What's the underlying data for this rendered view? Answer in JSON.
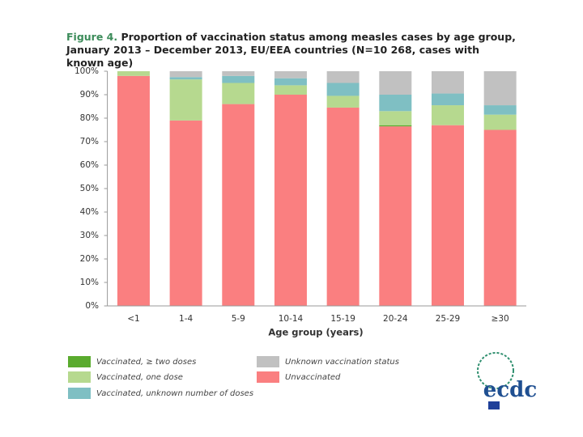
{
  "chart_data": {
    "type": "stacked_bar",
    "figure_label": "Figure 4.",
    "title": "Proportion of vaccination status among measles cases by age group, January 2013 – December 2013, EU/EEA countries (N=10 268, cases with known age)",
    "x_label": "Age group (years)",
    "categories": [
      "<1",
      "1-4",
      "5-9",
      "10-14",
      "15-19",
      "20-24",
      "25-29",
      "≥30"
    ],
    "series": [
      {
        "name": "Unvaccinated",
        "color": "#fa7f80",
        "values": [
          98,
          79,
          86,
          90,
          84.5,
          76.5,
          77,
          75
        ]
      },
      {
        "name": "Vaccinated, ≥ two doses",
        "color": "#5aab2e",
        "values": [
          0,
          0,
          0,
          0,
          0,
          0.5,
          0,
          0
        ]
      },
      {
        "name": "Vaccinated, one dose",
        "color": "#b6d98f",
        "values": [
          2,
          17.5,
          9,
          4,
          5,
          6,
          8.5,
          6.5
        ]
      },
      {
        "name": "Vaccinated, unknown number of doses",
        "color": "#7fbfc3",
        "values": [
          0,
          1,
          3,
          3,
          5.5,
          7,
          5,
          4
        ]
      },
      {
        "name": "Unknown vaccination status",
        "color": "#c1c1c1",
        "values": [
          0,
          2.5,
          2,
          3,
          5,
          10,
          9.5,
          14.5
        ]
      }
    ],
    "ylim": [
      0,
      100
    ],
    "yticks": [
      {
        "value": 0,
        "label": "0%"
      },
      {
        "value": 10,
        "label": "10%"
      },
      {
        "value": 20,
        "label": "20%"
      },
      {
        "value": 30,
        "label": "30%"
      },
      {
        "value": 40,
        "label": "40%"
      },
      {
        "value": 50,
        "label": "50%"
      },
      {
        "value": 60,
        "label": "60%"
      },
      {
        "value": 70,
        "label": "70%"
      },
      {
        "value": 80,
        "label": "80%"
      },
      {
        "value": 90,
        "label": "90%"
      },
      {
        "value": 100,
        "label": "100%"
      }
    ],
    "grid": false,
    "logo": "ecdc"
  }
}
